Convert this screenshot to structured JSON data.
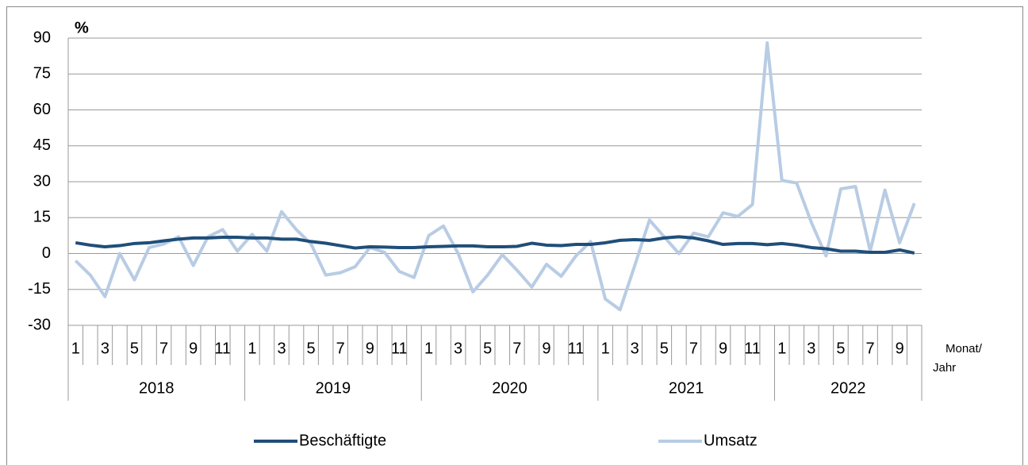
{
  "chart_data": {
    "type": "line",
    "y_label": "%",
    "x_label": [
      "Monat/",
      "Jahr"
    ],
    "categories": [
      "1",
      null,
      "3",
      null,
      "5",
      null,
      "7",
      null,
      "9",
      null,
      "11",
      null,
      "1",
      null,
      "3",
      null,
      "5",
      null,
      "7",
      null,
      "9",
      null,
      "11",
      null,
      "1",
      null,
      "3",
      null,
      "5",
      null,
      "7",
      null,
      "9",
      null,
      "11",
      null,
      "1",
      null,
      "3",
      null,
      "5",
      null,
      "7",
      null,
      "9",
      null,
      "11",
      null,
      "1",
      null,
      "3",
      null,
      "5",
      null,
      "7",
      null,
      "9",
      null
    ],
    "years": [
      "2018",
      "2019",
      "2020",
      "2021",
      "2022"
    ],
    "series": [
      {
        "name": "Beschäftigte",
        "color": "#1f4e79",
        "values": [
          4.5,
          3.5,
          2.8,
          3.3,
          4.2,
          4.5,
          5.3,
          6,
          6.5,
          6.5,
          6.8,
          6.8,
          6.5,
          6.5,
          6,
          6,
          5,
          4.3,
          3.3,
          2.3,
          2.8,
          2.7,
          2.5,
          2.5,
          2.8,
          3,
          3.2,
          3.2,
          2.8,
          2.8,
          3,
          4.3,
          3.5,
          3.3,
          3.8,
          3.8,
          4.5,
          5.5,
          5.8,
          5.5,
          6.5,
          7,
          6.5,
          5.3,
          3.8,
          4.2,
          4.2,
          3.7,
          4.2,
          3.5,
          2.5,
          2,
          1,
          1,
          0.5,
          0.5,
          1.5,
          0.2
        ]
      },
      {
        "name": "Umsatz",
        "color": "#b8cce4",
        "values": [
          -3,
          -9,
          -18,
          0,
          -11,
          2.5,
          4,
          7,
          -5,
          7,
          10,
          1,
          8,
          1,
          17.5,
          10,
          4,
          -9,
          -8,
          -5.5,
          2.5,
          0.5,
          -7.5,
          -10,
          7.5,
          11.5,
          0,
          -16,
          -9,
          -0.5,
          -7,
          -14,
          -4.5,
          -9.5,
          -1,
          5,
          -19,
          -23.5,
          -5,
          14,
          7,
          0,
          8.5,
          7,
          17,
          15.5,
          20.5,
          88,
          30.5,
          29.5,
          13,
          -1,
          27,
          28,
          1,
          26.5,
          4.5,
          21
        ]
      }
    ],
    "ylim": [
      -30,
      90
    ],
    "yticks": [
      -30,
      -15,
      0,
      15,
      30,
      45,
      60,
      75,
      90
    ],
    "grid": true,
    "legend": "bottom"
  }
}
